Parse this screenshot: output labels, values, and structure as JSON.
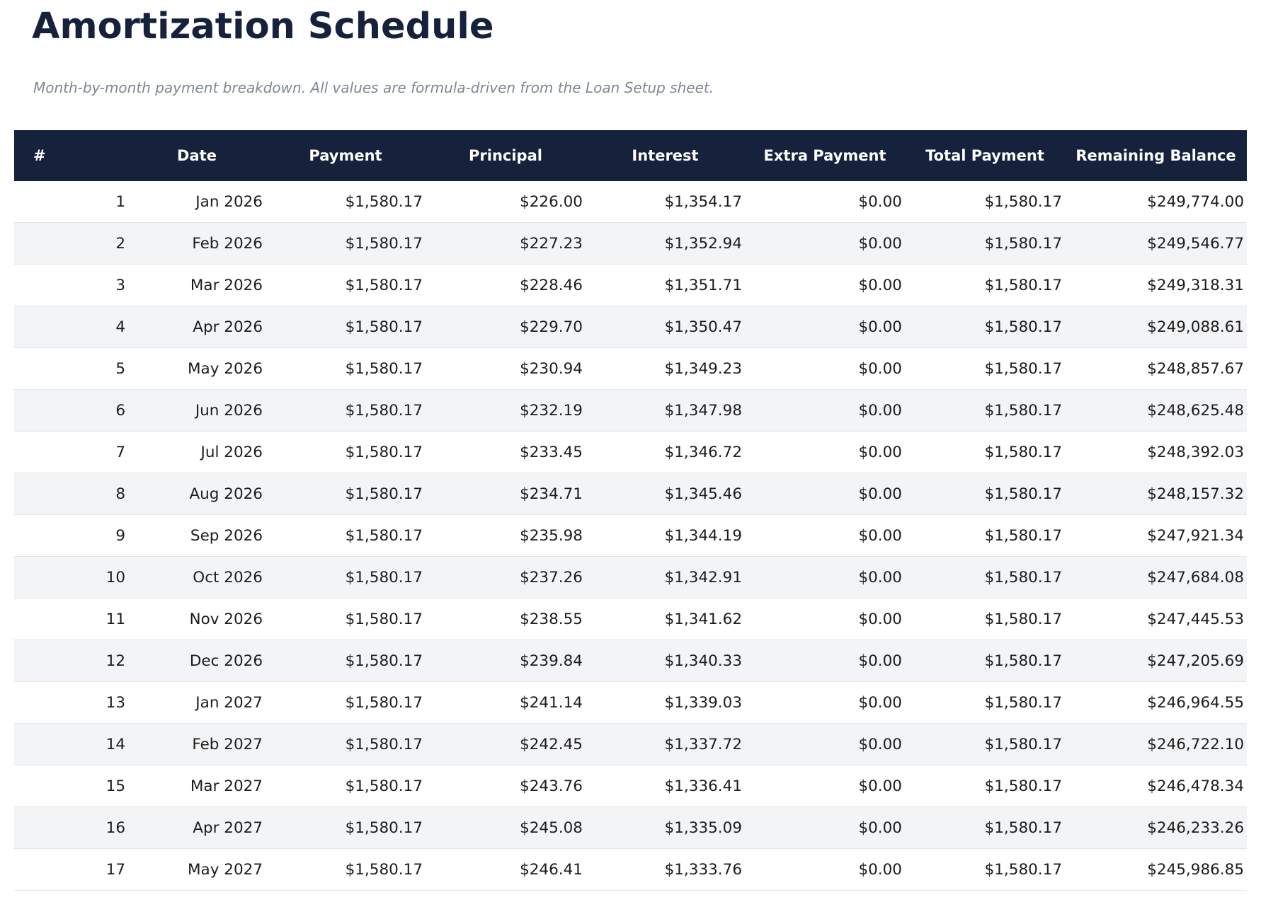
{
  "header": {
    "title": "Amortization Schedule",
    "subtitle": "Month-by-month payment breakdown. All values are formula-driven from the Loan Setup sheet."
  },
  "table": {
    "columns": [
      "#",
      "Date",
      "Payment",
      "Principal",
      "Interest",
      "Extra Payment",
      "Total Payment",
      "Remaining Balance"
    ],
    "rows": [
      [
        "1",
        "Jan 2026",
        "$1,580.17",
        "$226.00",
        "$1,354.17",
        "$0.00",
        "$1,580.17",
        "$249,774.00"
      ],
      [
        "2",
        "Feb 2026",
        "$1,580.17",
        "$227.23",
        "$1,352.94",
        "$0.00",
        "$1,580.17",
        "$249,546.77"
      ],
      [
        "3",
        "Mar 2026",
        "$1,580.17",
        "$228.46",
        "$1,351.71",
        "$0.00",
        "$1,580.17",
        "$249,318.31"
      ],
      [
        "4",
        "Apr 2026",
        "$1,580.17",
        "$229.70",
        "$1,350.47",
        "$0.00",
        "$1,580.17",
        "$249,088.61"
      ],
      [
        "5",
        "May 2026",
        "$1,580.17",
        "$230.94",
        "$1,349.23",
        "$0.00",
        "$1,580.17",
        "$248,857.67"
      ],
      [
        "6",
        "Jun 2026",
        "$1,580.17",
        "$232.19",
        "$1,347.98",
        "$0.00",
        "$1,580.17",
        "$248,625.48"
      ],
      [
        "7",
        "Jul 2026",
        "$1,580.17",
        "$233.45",
        "$1,346.72",
        "$0.00",
        "$1,580.17",
        "$248,392.03"
      ],
      [
        "8",
        "Aug 2026",
        "$1,580.17",
        "$234.71",
        "$1,345.46",
        "$0.00",
        "$1,580.17",
        "$248,157.32"
      ],
      [
        "9",
        "Sep 2026",
        "$1,580.17",
        "$235.98",
        "$1,344.19",
        "$0.00",
        "$1,580.17",
        "$247,921.34"
      ],
      [
        "10",
        "Oct 2026",
        "$1,580.17",
        "$237.26",
        "$1,342.91",
        "$0.00",
        "$1,580.17",
        "$247,684.08"
      ],
      [
        "11",
        "Nov 2026",
        "$1,580.17",
        "$238.55",
        "$1,341.62",
        "$0.00",
        "$1,580.17",
        "$247,445.53"
      ],
      [
        "12",
        "Dec 2026",
        "$1,580.17",
        "$239.84",
        "$1,340.33",
        "$0.00",
        "$1,580.17",
        "$247,205.69"
      ],
      [
        "13",
        "Jan 2027",
        "$1,580.17",
        "$241.14",
        "$1,339.03",
        "$0.00",
        "$1,580.17",
        "$246,964.55"
      ],
      [
        "14",
        "Feb 2027",
        "$1,580.17",
        "$242.45",
        "$1,337.72",
        "$0.00",
        "$1,580.17",
        "$246,722.10"
      ],
      [
        "15",
        "Mar 2027",
        "$1,580.17",
        "$243.76",
        "$1,336.41",
        "$0.00",
        "$1,580.17",
        "$246,478.34"
      ],
      [
        "16",
        "Apr 2027",
        "$1,580.17",
        "$245.08",
        "$1,335.09",
        "$0.00",
        "$1,580.17",
        "$246,233.26"
      ],
      [
        "17",
        "May 2027",
        "$1,580.17",
        "$246.41",
        "$1,333.76",
        "$0.00",
        "$1,580.17",
        "$245,986.85"
      ]
    ]
  }
}
